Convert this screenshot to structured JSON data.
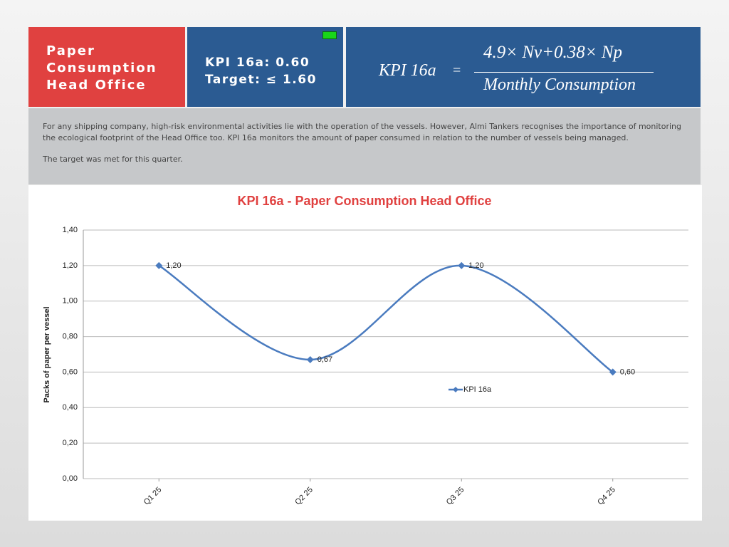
{
  "header": {
    "title": "Paper Consumption Head Office",
    "kpi": "KPI 16a: 0.60",
    "target": "Target: ≤ 1.60",
    "formula": {
      "lhs": "KPI 16a",
      "eq": "=",
      "numerator": "4.9× Nv+0.38× Np",
      "denominator": "Monthly Consumption"
    }
  },
  "description": [
    "For any shipping company, high-risk environmental activities lie with the operation of the vessels. However, Almi Tankers recognises the importance of monitoring the ecological footprint of the Head Office too. KPI 16a monitors the amount of paper consumed in relation to the number of vessels being managed.",
    "The target was met for this quarter."
  ],
  "chart_data": {
    "type": "line",
    "title": "KPI 16a  - Paper Consumption Head Office",
    "y_label": "Packs of paper per vessel",
    "categories": [
      "Q1 25",
      "Q2 25",
      "Q3 25",
      "Q4 25"
    ],
    "series": [
      {
        "name": "KPI 16a",
        "color": "#4a7bbf",
        "values": [
          1.2,
          0.67,
          1.2,
          0.6
        ],
        "value_labels": [
          "1,20",
          "0,67",
          "1,20",
          "0,60"
        ]
      }
    ],
    "ylim": [
      0,
      1.4
    ],
    "yticks": [
      {
        "value": 0,
        "label": "0,00"
      },
      {
        "value": 0.2,
        "label": "0,20"
      },
      {
        "value": 0.4,
        "label": "0,40"
      },
      {
        "value": 0.6,
        "label": "0,60"
      },
      {
        "value": 0.8,
        "label": "0,80"
      },
      {
        "value": 1.0,
        "label": "1,00"
      },
      {
        "value": 1.2,
        "label": "1,20"
      },
      {
        "value": 1.4,
        "label": "1,40"
      }
    ],
    "grid": true,
    "smooth": true
  }
}
